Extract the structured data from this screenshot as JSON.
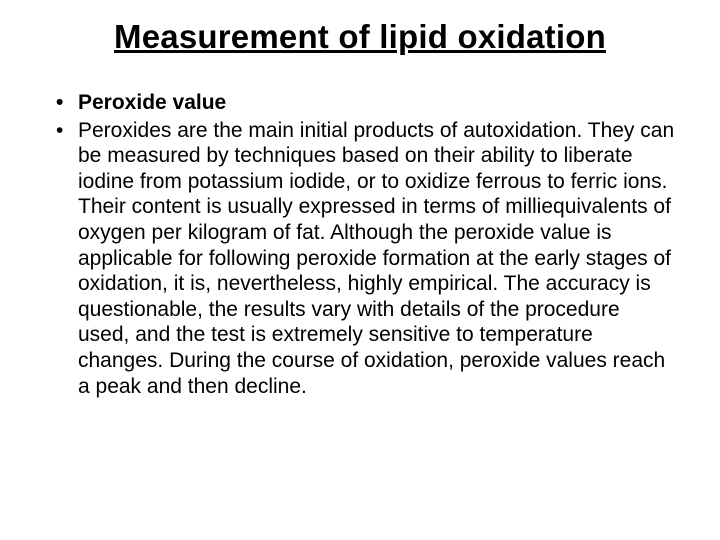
{
  "title": "Measurement of lipid oxidation",
  "bullets": {
    "b1": "Peroxide value",
    "b2": "Peroxides are the main initial products of autoxidation. They can be measured by techniques based on their ability to liberate iodine from potassium iodide, or to oxidize ferrous to ferric ions. Their content is usually expressed in terms of milliequivalents of oxygen per kilogram of fat. Although the peroxide value is applicable for following peroxide formation at the early stages of oxidation, it is, nevertheless, highly empirical. The accuracy is questionable, the results vary with details of the procedure used, and the test is extremely sensitive to temperature changes. During the course of oxidation, peroxide values reach a peak and then decline."
  },
  "styling": {
    "background_color": "#ffffff",
    "text_color": "#000000",
    "title_fontsize": 33,
    "title_fontweight": "bold",
    "title_underline": true,
    "body_fontsize": 21,
    "line_height": 1.22,
    "font_family": "Arial",
    "bullet_char": "•",
    "slide_width": 720,
    "slide_height": 540
  }
}
